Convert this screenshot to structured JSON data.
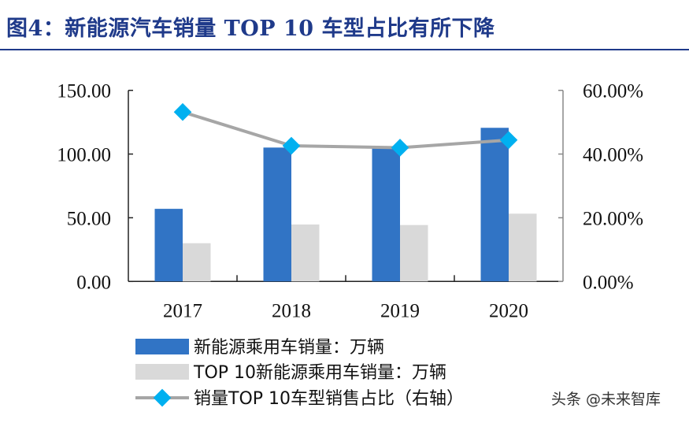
{
  "title": "图4：新能源汽车销量 TOP 10 车型占比有所下降",
  "watermark": "头条 @未来智库",
  "chart_data": {
    "type": "bar",
    "categories": [
      "2017",
      "2018",
      "2019",
      "2020"
    ],
    "series": [
      {
        "name": "新能源乘用车销量：万辆",
        "type": "bar",
        "axis": "left",
        "color": "#3174c5",
        "values": [
          57.0,
          105.1,
          104.5,
          120.6
        ]
      },
      {
        "name": "TOP 10新能源乘用车销量：万辆",
        "type": "bar",
        "axis": "left",
        "color": "#d9d9d9",
        "values": [
          30.0,
          44.7,
          44.3,
          53.2
        ]
      },
      {
        "name": "销量TOP 10车型销售占比（右轴）",
        "type": "line",
        "axis": "right",
        "color": "#a6a6a6",
        "marker_color": "#00b0f0",
        "values": [
          53.2,
          42.6,
          42.0,
          44.4
        ]
      }
    ],
    "ylim": [
      0,
      150
    ],
    "y_ticks": [
      "0.00",
      "50.00",
      "100.00",
      "150.00"
    ],
    "y2lim": [
      0,
      60
    ],
    "y2_ticks": [
      "0.00%",
      "20.00%",
      "40.00%",
      "60.00%"
    ],
    "grid": false,
    "legend_placement": "bottom"
  }
}
